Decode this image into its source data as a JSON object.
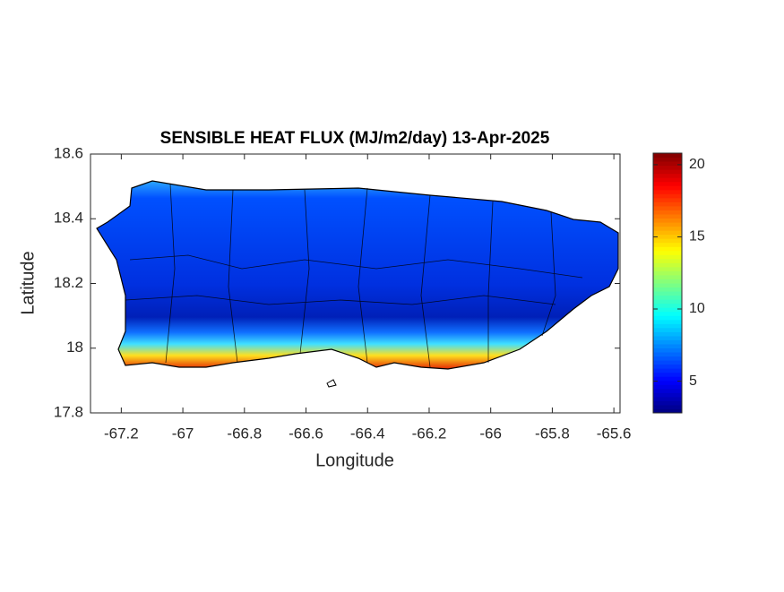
{
  "chart_data": {
    "type": "map",
    "title": "SENSIBLE HEAT FLUX (MJ/m2/day) 13-Apr-2025",
    "x_label": "Longitude",
    "y_label": "Latitude",
    "xlim": [
      -67.3,
      -65.58
    ],
    "ylim": [
      17.8,
      18.6
    ],
    "xticks": [
      -67.2,
      -67,
      -66.8,
      -66.6,
      -66.4,
      -66.2,
      -66,
      -65.8,
      -65.6
    ],
    "yticks": [
      17.8,
      18,
      18.2,
      18.4,
      18.6
    ],
    "colorbar": {
      "colormap": "jet",
      "clim": [
        2.8,
        20.8
      ],
      "ticks": [
        5,
        10,
        15,
        20
      ]
    }
  }
}
